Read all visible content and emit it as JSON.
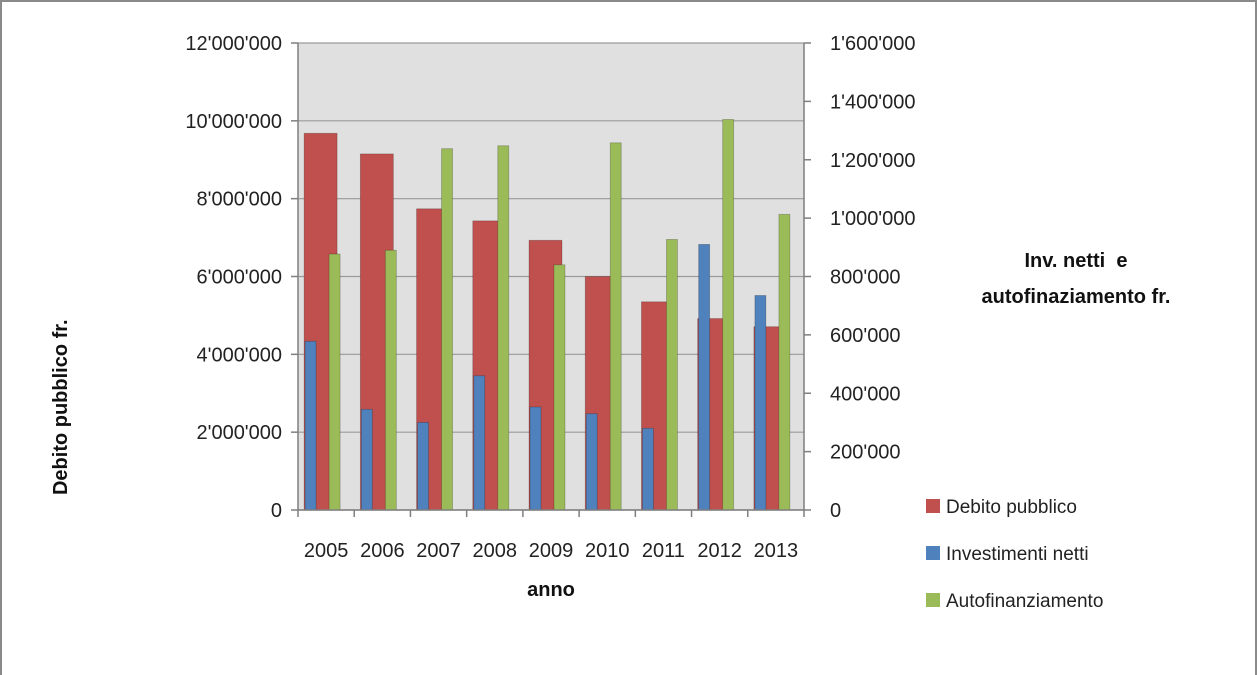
{
  "chart_data": {
    "type": "bar",
    "categories": [
      "2005",
      "2006",
      "2007",
      "2008",
      "2009",
      "2010",
      "2011",
      "2012",
      "2013"
    ],
    "series": [
      {
        "name": "Investimenti netti",
        "axis": "right",
        "color": "#4f81bd",
        "values": [
          578000,
          345000,
          300000,
          460000,
          353000,
          330000,
          280000,
          910000,
          735000
        ]
      },
      {
        "name": "Debito pubblico",
        "axis": "left",
        "color": "#c0504d",
        "values": [
          9680000,
          9150000,
          7740000,
          7430000,
          6930000,
          6000000,
          5350000,
          4920000,
          4710000
        ]
      },
      {
        "name": "Autofinanziamento",
        "axis": "right",
        "color": "#9bbb59",
        "values": [
          877000,
          890000,
          1238000,
          1248000,
          840000,
          1258000,
          927000,
          1338000,
          1013000
        ]
      }
    ],
    "legend_order": [
      "Debito pubblico",
      "Investimenti netti",
      "Autofinanziamento"
    ],
    "xlabel": "anno",
    "ylabel": "Debito pubblico fr.",
    "y2label": [
      "Inv. netti  e",
      "autofinaziamento fr."
    ],
    "ylim": [
      0,
      12000000
    ],
    "y2lim": [
      0,
      1600000
    ],
    "yticks": [
      "0",
      "2'000'000",
      "4'000'000",
      "6'000'000",
      "8'000'000",
      "10'000'000",
      "12'000'000"
    ],
    "y2ticks": [
      "0",
      "200'000",
      "400'000",
      "600'000",
      "800'000",
      "1'000'000",
      "1'200'000",
      "1'400'000",
      "1'600'000"
    ],
    "legend_position": "right",
    "plot_background": "#e0e0e0",
    "grid": "horizontal"
  }
}
